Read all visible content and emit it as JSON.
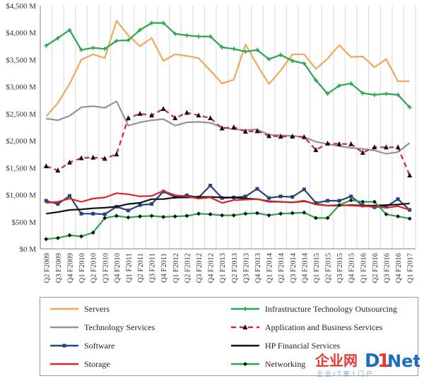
{
  "chart_data": {
    "type": "line",
    "title": "",
    "xlabel": "",
    "ylabel": "",
    "ylim": [
      0,
      4500
    ],
    "y_ticks": [
      0,
      500,
      1000,
      1500,
      2000,
      2500,
      3000,
      3500,
      4000,
      4500
    ],
    "y_tick_labels": [
      "$0 M",
      "$500 M",
      "$1,000 M",
      "$1,500 M",
      "$2,000 M",
      "$2,500 M",
      "$3,000 M",
      "$3,500 M",
      "$4,000 M",
      "$4,500 M"
    ],
    "categories": [
      "Q2 F2009",
      "Q3 F2009",
      "Q4 F2009",
      "Q1 F2010",
      "Q2 F2010",
      "Q3 F2010",
      "Q4 F2010",
      "Q1 F2011",
      "Q2 F2011",
      "Q3 F2011",
      "Q4 F2011",
      "Q1 F2012",
      "Q2 F2012",
      "Q3 F2012",
      "Q4 F2012",
      "Q1 F2013",
      "Q2 F2013",
      "Q3 F2013",
      "Q4 F2013",
      "Q1 F2014",
      "Q2 F2014",
      "Q3 F2014",
      "Q4 F2014",
      "Q1 F2015",
      "Q2 F2015",
      "Q3 F2015",
      "Q4 F2015",
      "Q1 F2016",
      "Q2 F2016",
      "Q3 F2016",
      "Q4 F2016",
      "Q1 F2017"
    ],
    "grid": "vertical",
    "legend_position": "bottom",
    "series": [
      {
        "name": "Servers",
        "color": "#f0a858",
        "style": "solid",
        "marker": "none",
        "values": [
          2450,
          2700,
          3050,
          3500,
          3600,
          3530,
          4220,
          3950,
          3750,
          3900,
          3480,
          3600,
          3570,
          3530,
          3300,
          3060,
          3130,
          3780,
          3400,
          3050,
          3300,
          3600,
          3600,
          3330,
          3520,
          3770,
          3550,
          3560,
          3360,
          3510,
          3100,
          3100
        ]
      },
      {
        "name": "Infrastructure Technology Outsourcing",
        "color": "#27a84a",
        "style": "solid",
        "marker": "plus",
        "values": [
          3760,
          3900,
          4050,
          3680,
          3720,
          3700,
          3850,
          3860,
          4050,
          4180,
          4180,
          3980,
          3950,
          3930,
          3930,
          3730,
          3700,
          3650,
          3680,
          3510,
          3590,
          3480,
          3430,
          3120,
          2870,
          3020,
          3060,
          2880,
          2850,
          2870,
          2850,
          2620
        ]
      },
      {
        "name": "Technology Services",
        "color": "#949494",
        "style": "solid",
        "marker": "none",
        "values": [
          2410,
          2380,
          2460,
          2620,
          2640,
          2610,
          2730,
          2280,
          2340,
          2380,
          2400,
          2280,
          2340,
          2350,
          2330,
          2250,
          2210,
          2200,
          2210,
          2110,
          2100,
          2090,
          2070,
          1980,
          1940,
          1900,
          1870,
          1850,
          1820,
          1760,
          1790,
          1960
        ]
      },
      {
        "name": "Application and Business Services",
        "color": "#d8262c",
        "style": "dashed",
        "marker": "triangle",
        "values": [
          1530,
          1450,
          1600,
          1680,
          1690,
          1670,
          1750,
          2420,
          2500,
          2470,
          2590,
          2420,
          2520,
          2470,
          2420,
          2230,
          2250,
          2170,
          2180,
          2090,
          2080,
          2080,
          2070,
          1830,
          1950,
          1940,
          1940,
          1780,
          1880,
          1880,
          1880,
          1360
        ]
      },
      {
        "name": "Software",
        "color": "#23427e",
        "style": "solid",
        "marker": "square",
        "values": [
          890,
          830,
          980,
          650,
          650,
          640,
          780,
          710,
          810,
          830,
          1060,
          960,
          990,
          950,
          1170,
          940,
          950,
          970,
          1110,
          940,
          970,
          960,
          1100,
          850,
          890,
          890,
          970,
          800,
          770,
          780,
          920,
          720
        ]
      },
      {
        "name": "HP Financial Services",
        "color": "#111111",
        "style": "solid",
        "marker": "none",
        "values": [
          650,
          680,
          720,
          730,
          750,
          760,
          780,
          830,
          850,
          920,
          920,
          950,
          950,
          960,
          960,
          950,
          950,
          930,
          920,
          880,
          870,
          860,
          880,
          830,
          800,
          800,
          810,
          800,
          800,
          810,
          820,
          840
        ]
      },
      {
        "name": "Storage",
        "color": "#d8262c",
        "style": "solid",
        "marker": "none",
        "values": [
          850,
          870,
          930,
          870,
          930,
          950,
          1030,
          1010,
          970,
          980,
          1070,
          990,
          970,
          930,
          950,
          850,
          900,
          910,
          920,
          870,
          870,
          860,
          890,
          820,
          800,
          810,
          800,
          790,
          780,
          760,
          790,
          720
        ]
      },
      {
        "name": "Networking",
        "color": "#27a84a",
        "style": "solid",
        "marker": "diamond",
        "values": [
          180,
          200,
          250,
          230,
          300,
          570,
          610,
          580,
          600,
          610,
          590,
          600,
          610,
          650,
          640,
          620,
          620,
          650,
          660,
          620,
          650,
          660,
          670,
          570,
          570,
          810,
          900,
          870,
          870,
          640,
          600,
          560
        ]
      }
    ]
  }
}
